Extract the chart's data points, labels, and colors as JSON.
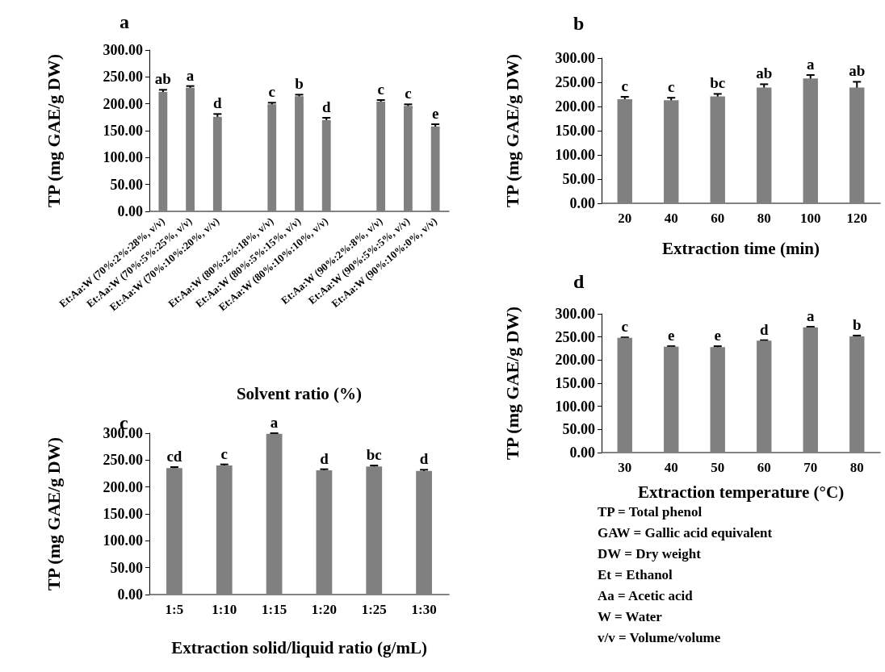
{
  "chart_data": [
    {
      "type": "bar",
      "title": "a",
      "xlabel": "Solvent ratio (%)",
      "ylabel": "TP (mg GAE/g DW)",
      "color": "#808080",
      "categories": [
        "Et:Aa:W (70%:2%:28%, v/v)",
        "Et:Aa:W (70%:5%:25%, v/v)",
        "Et:Aa:W (70%:10%:20%, v/v)",
        null,
        "Et:Aa:W (80%:2%:18%, v/v)",
        "Et:Aa:W (80%:5%:15%, v/v)",
        "Et:Aa:W (80%:10%:10%, v/v)",
        null,
        "Et:Aa:W (90%:2%:8%, v/v)",
        "Et:Aa:W (90%:5%:5%, v/v)",
        "Et:Aa:W (90%:10%:0%, v/v)"
      ],
      "values": [
        222,
        230,
        176,
        null,
        199,
        214,
        170,
        null,
        204,
        196,
        158
      ],
      "errors": [
        4,
        3,
        5,
        null,
        3,
        3,
        4,
        null,
        3,
        3,
        4
      ],
      "ylim": [
        0,
        300
      ],
      "yticks": [
        {
          "value": 0,
          "label": "0.00"
        },
        {
          "value": 50,
          "label": "50.00"
        },
        {
          "value": 100,
          "label": "100.00"
        },
        {
          "value": 150,
          "label": "150.00"
        },
        {
          "value": 200,
          "label": "200.00"
        },
        {
          "value": 250,
          "label": "250.00"
        },
        {
          "value": 300,
          "label": "300.00"
        }
      ],
      "annotations": [
        {
          "text": "ab",
          "x": "Et:Aa:W (70%:2%:28%, v/v)",
          "y": 222
        },
        {
          "text": "a",
          "x": "Et:Aa:W (70%:5%:25%, v/v)",
          "y": 230
        },
        {
          "text": "d",
          "x": "Et:Aa:W (70%:10%:20%, v/v)",
          "y": 176
        },
        {
          "text": "c",
          "x": "Et:Aa:W (80%:2%:18%, v/v)",
          "y": 199
        },
        {
          "text": "b",
          "x": "Et:Aa:W (80%:5%:15%, v/v)",
          "y": 214
        },
        {
          "text": "d",
          "x": "Et:Aa:W (80%:10%:10%, v/v)",
          "y": 170
        },
        {
          "text": "c",
          "x": "Et:Aa:W (90%:2%:8%, v/v)",
          "y": 204
        },
        {
          "text": "c",
          "x": "Et:Aa:W (90%:5%:5%, v/v)",
          "y": 196
        },
        {
          "text": "e",
          "x": "Et:Aa:W (90%:10%:0%, v/v)",
          "y": 158
        }
      ]
    },
    {
      "type": "bar",
      "title": "b",
      "xlabel": "Extraction time (min)",
      "ylabel": "TP (mg GAE/g DW)",
      "color": "#808080",
      "categories": [
        "20",
        "40",
        "60",
        "80",
        "100",
        "120"
      ],
      "values": [
        215,
        213,
        221,
        239,
        258,
        239
      ],
      "errors": [
        5,
        5,
        5,
        7,
        7,
        12
      ],
      "ylim": [
        0,
        300
      ],
      "yticks": [
        {
          "value": 0,
          "label": "0.00"
        },
        {
          "value": 50,
          "label": "50.00"
        },
        {
          "value": 100,
          "label": "100.00"
        },
        {
          "value": 150,
          "label": "150.00"
        },
        {
          "value": 200,
          "label": "200.00"
        },
        {
          "value": 250,
          "label": "250.00"
        },
        {
          "value": 300,
          "label": "300.00"
        }
      ],
      "annotations": [
        {
          "text": "c",
          "x": "20",
          "y": 215
        },
        {
          "text": "c",
          "x": "40",
          "y": 213
        },
        {
          "text": "bc",
          "x": "60",
          "y": 221
        },
        {
          "text": "ab",
          "x": "80",
          "y": 239
        },
        {
          "text": "a",
          "x": "100",
          "y": 258
        },
        {
          "text": "ab",
          "x": "120",
          "y": 239
        }
      ]
    },
    {
      "type": "bar",
      "title": "c",
      "xlabel": "Extraction solid/liquid ratio (g/mL)",
      "ylabel": "TP (mg GAE/g DW)",
      "color": "#808080",
      "categories": [
        "1:5",
        "1:10",
        "1:15",
        "1:20",
        "1:25",
        "1:30"
      ],
      "values": [
        235,
        240,
        299,
        231,
        238,
        230
      ],
      "errors": [
        2,
        2,
        1,
        2,
        2,
        2
      ],
      "ylim": [
        0,
        300
      ],
      "yticks": [
        {
          "value": 0,
          "label": "0.00"
        },
        {
          "value": 50,
          "label": "50.00"
        },
        {
          "value": 100,
          "label": "100.00"
        },
        {
          "value": 150,
          "label": "150.00"
        },
        {
          "value": 200,
          "label": "200.00"
        },
        {
          "value": 250,
          "label": "250.00"
        },
        {
          "value": 300,
          "label": "300.00"
        }
      ],
      "annotations": [
        {
          "text": "cd",
          "x": "1:5",
          "y": 235
        },
        {
          "text": "c",
          "x": "1:10",
          "y": 240
        },
        {
          "text": "a",
          "x": "1:15",
          "y": 299
        },
        {
          "text": "d",
          "x": "1:20",
          "y": 231
        },
        {
          "text": "bc",
          "x": "1:25",
          "y": 238
        },
        {
          "text": "d",
          "x": "1:30",
          "y": 230
        }
      ]
    },
    {
      "type": "bar",
      "title": "d",
      "xlabel": "Extraction temperature (°C)",
      "ylabel": "TP (mg GAE/g DW)",
      "color": "#808080",
      "categories": [
        "30",
        "40",
        "50",
        "60",
        "70",
        "80"
      ],
      "values": [
        248,
        229,
        228,
        242,
        271,
        251
      ],
      "errors": [
        1,
        1,
        2,
        1,
        1,
        2
      ],
      "ylim": [
        0,
        300
      ],
      "yticks": [
        {
          "value": 0,
          "label": "0.00"
        },
        {
          "value": 50,
          "label": "50.00"
        },
        {
          "value": 100,
          "label": "100.00"
        },
        {
          "value": 150,
          "label": "150.00"
        },
        {
          "value": 200,
          "label": "200.00"
        },
        {
          "value": 250,
          "label": "250.00"
        },
        {
          "value": 300,
          "label": "300.00"
        }
      ],
      "annotations": [
        {
          "text": "c",
          "x": "30",
          "y": 248
        },
        {
          "text": "e",
          "x": "40",
          "y": 229
        },
        {
          "text": "e",
          "x": "50",
          "y": 228
        },
        {
          "text": "d",
          "x": "60",
          "y": 242
        },
        {
          "text": "a",
          "x": "70",
          "y": 271
        },
        {
          "text": "b",
          "x": "80",
          "y": 251
        }
      ]
    },
    {
      "type": "other",
      "annotations": [
        "TP = Total phenol",
        "GAW = Gallic acid equivalent",
        "DW = Dry weight",
        "Et = Ethanol",
        "Aa = Acetic acid",
        "W = Water",
        "v/v = Volume/volume"
      ]
    }
  ]
}
